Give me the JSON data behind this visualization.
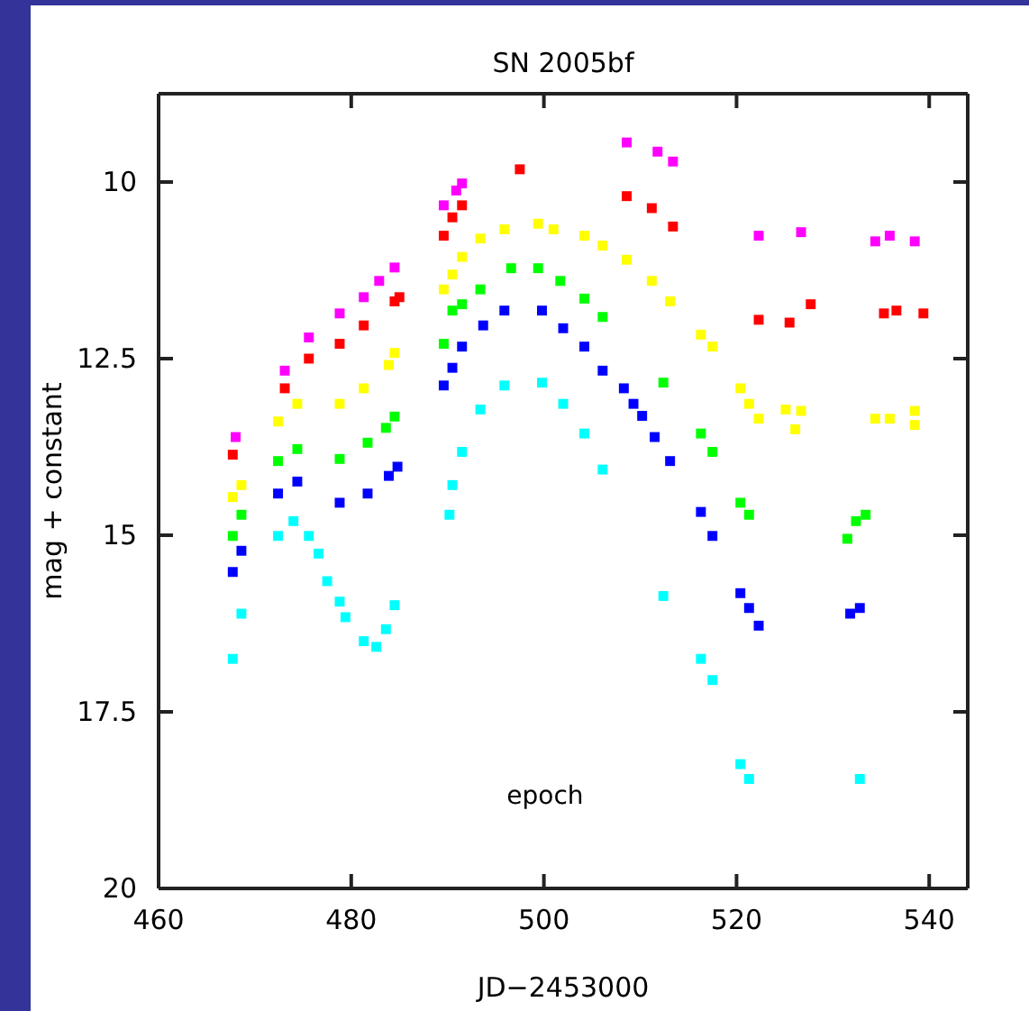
{
  "chart_data": {
    "type": "scatter",
    "title": "SN 2005bf",
    "xlabel": "JD−2453000",
    "ylabel": "mag + constant",
    "annotations": [
      "epoch"
    ],
    "xlim": [
      460,
      544
    ],
    "xticks": [
      460,
      480,
      500,
      520,
      540
    ],
    "ylim": [
      20,
      8.75
    ],
    "yticks": [
      10,
      12.5,
      15,
      17.5,
      20
    ],
    "marker": "square",
    "grid": false,
    "series": [
      {
        "color": "#ff00ff",
        "x": [
          468.0,
          473.1,
          475.6,
          478.8,
          481.3,
          482.9,
          484.5,
          489.6,
          490.9,
          491.5,
          508.6,
          511.8,
          513.4,
          522.3,
          526.7,
          534.4,
          535.9,
          538.5
        ],
        "values": [
          13.61,
          12.67,
          12.2,
          11.86,
          11.63,
          11.4,
          11.21,
          10.33,
          10.12,
          10.02,
          9.44,
          9.57,
          9.71,
          10.76,
          10.71,
          10.84,
          10.76,
          10.84
        ]
      },
      {
        "color": "#ff0000",
        "x": [
          467.7,
          473.1,
          475.6,
          478.8,
          481.3,
          484.5,
          485.0,
          489.6,
          490.5,
          491.5,
          497.5,
          508.6,
          511.2,
          513.4,
          522.3,
          525.5,
          527.7,
          535.3,
          536.6,
          539.4
        ],
        "values": [
          13.86,
          12.92,
          12.5,
          12.29,
          12.03,
          11.69,
          11.63,
          10.76,
          10.5,
          10.33,
          9.82,
          10.2,
          10.37,
          10.63,
          11.95,
          11.99,
          11.73,
          11.86,
          11.82,
          11.86
        ]
      },
      {
        "color": "#ffff00",
        "x": [
          467.7,
          468.6,
          472.4,
          474.4,
          478.8,
          481.3,
          483.9,
          484.5,
          489.6,
          490.5,
          491.5,
          493.4,
          495.9,
          499.4,
          501.0,
          504.2,
          506.1,
          508.6,
          511.2,
          513.1,
          516.3,
          517.5,
          520.4,
          521.3,
          522.3,
          525.1,
          526.7,
          526.1,
          534.4,
          535.9,
          538.5,
          538.5
        ],
        "values": [
          14.46,
          14.29,
          13.39,
          13.14,
          13.14,
          12.92,
          12.59,
          12.42,
          11.52,
          11.31,
          11.06,
          10.8,
          10.67,
          10.59,
          10.67,
          10.76,
          10.9,
          11.1,
          11.4,
          11.69,
          12.16,
          12.33,
          12.92,
          13.14,
          13.35,
          13.22,
          13.24,
          13.5,
          13.35,
          13.35,
          13.24,
          13.44
        ]
      },
      {
        "color": "#00ff00",
        "x": [
          467.7,
          468.6,
          472.4,
          474.4,
          478.8,
          481.7,
          483.6,
          484.5,
          489.6,
          490.5,
          491.5,
          493.4,
          496.6,
          499.4,
          501.7,
          504.2,
          506.1,
          512.4,
          516.3,
          517.5,
          520.4,
          521.3,
          531.5,
          532.4,
          533.4
        ],
        "values": [
          15.01,
          14.71,
          13.95,
          13.78,
          13.92,
          13.69,
          13.48,
          13.32,
          12.29,
          11.82,
          11.73,
          11.52,
          11.22,
          11.22,
          11.4,
          11.65,
          11.91,
          12.84,
          13.56,
          13.82,
          14.54,
          14.71,
          15.05,
          14.8,
          14.71
        ]
      },
      {
        "color": "#0000ff",
        "x": [
          467.7,
          468.6,
          472.4,
          474.4,
          478.8,
          481.7,
          483.9,
          484.8,
          489.6,
          490.5,
          491.5,
          493.7,
          495.9,
          499.8,
          502.0,
          504.2,
          506.1,
          508.3,
          509.3,
          510.2,
          511.5,
          513.1,
          516.3,
          517.5,
          520.4,
          521.3,
          522.3,
          531.8,
          532.8
        ],
        "values": [
          15.52,
          15.22,
          14.41,
          14.24,
          14.54,
          14.41,
          14.16,
          14.03,
          12.88,
          12.63,
          12.33,
          12.03,
          11.82,
          11.82,
          12.07,
          12.33,
          12.67,
          12.92,
          13.14,
          13.31,
          13.61,
          13.95,
          14.67,
          15.01,
          15.82,
          16.03,
          16.28,
          16.11,
          16.03
        ]
      },
      {
        "color": "#00ffff",
        "x": [
          467.7,
          468.6,
          472.4,
          474.0,
          475.6,
          476.6,
          477.5,
          478.8,
          479.4,
          481.3,
          482.6,
          483.6,
          484.5,
          490.2,
          490.5,
          491.5,
          493.4,
          495.9,
          499.8,
          502.0,
          504.2,
          506.1,
          512.4,
          516.3,
          517.5,
          520.4,
          521.3,
          532.8
        ],
        "values": [
          16.75,
          16.11,
          15.01,
          14.8,
          15.01,
          15.26,
          15.65,
          15.94,
          16.16,
          16.5,
          16.58,
          16.33,
          15.99,
          14.71,
          14.29,
          13.82,
          13.22,
          12.88,
          12.84,
          13.14,
          13.56,
          14.07,
          15.86,
          16.75,
          17.05,
          18.24,
          18.45,
          18.45
        ]
      }
    ]
  }
}
